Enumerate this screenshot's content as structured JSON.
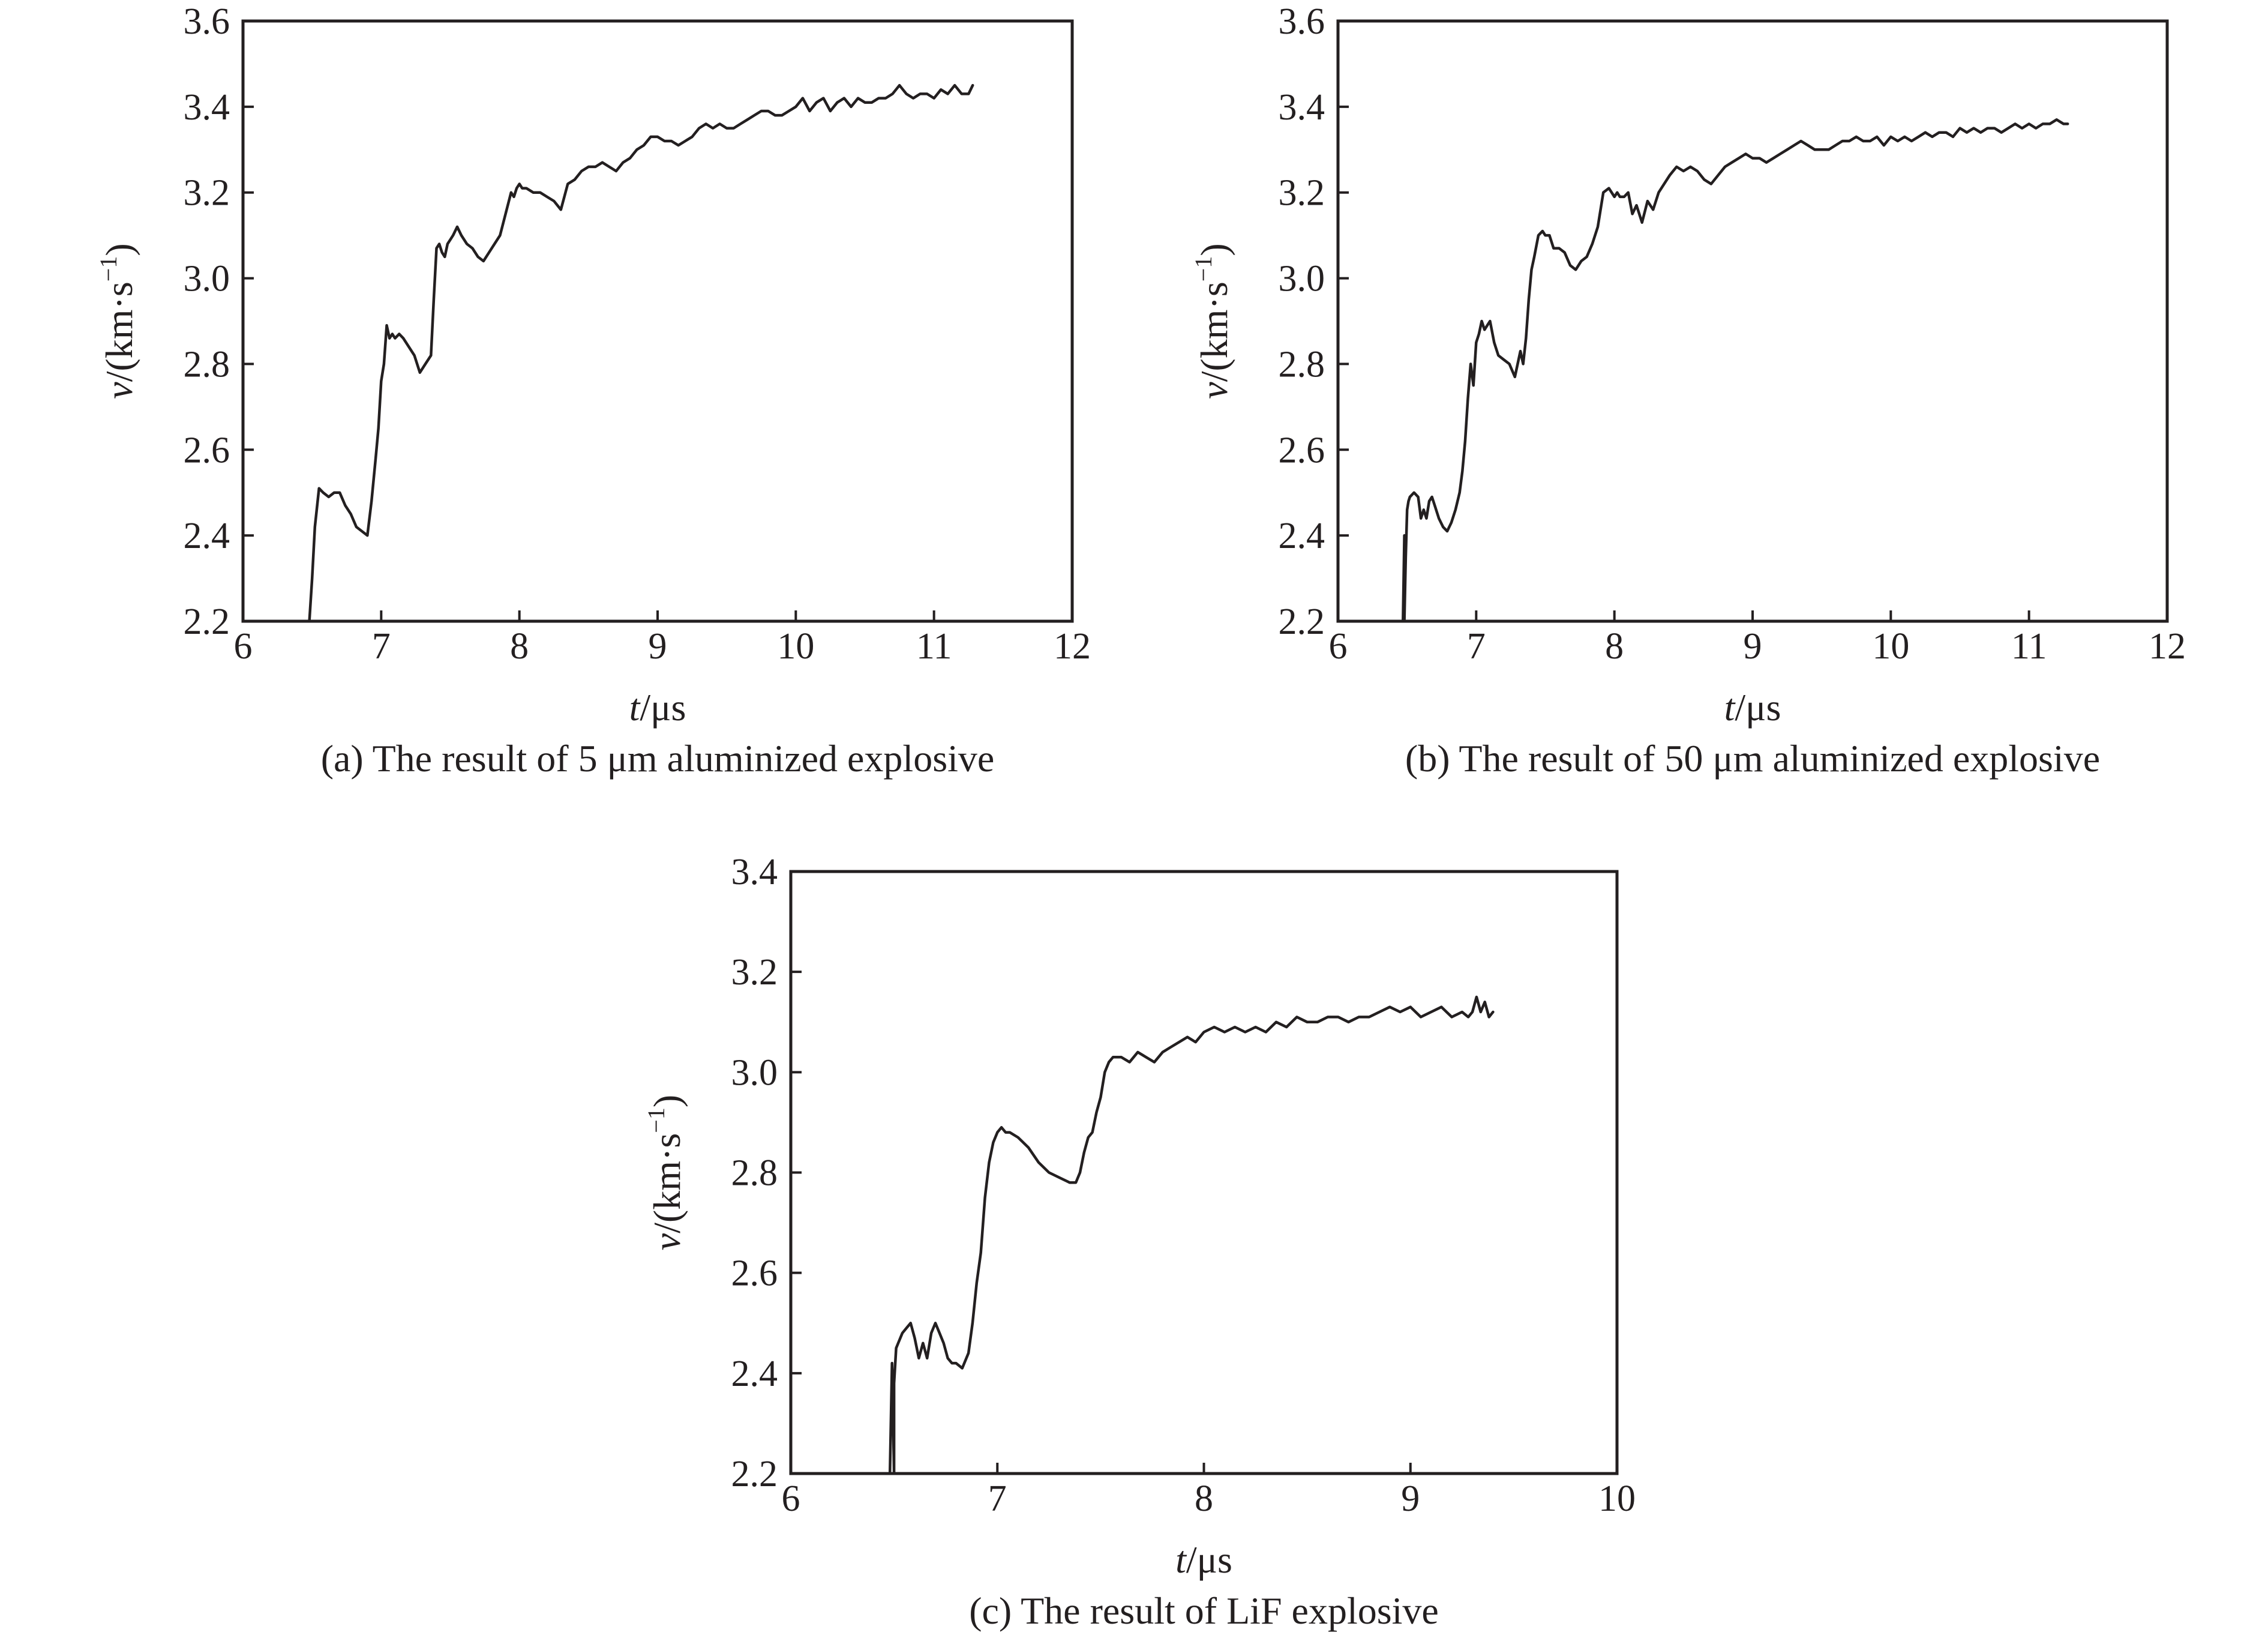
{
  "chart_data": [
    {
      "id": "a",
      "type": "line",
      "caption": "(a) The result of 5 μm aluminized explosive",
      "xlabel_var": "t",
      "xlabel_unit": "/μs",
      "ylabel_var": "v",
      "ylabel_unit": "/(km·s",
      "ylabel_exp": "−1",
      "ylabel_close": ")",
      "xlim": [
        6,
        12
      ],
      "ylim": [
        2.2,
        3.6
      ],
      "xticks": [
        6,
        7,
        8,
        9,
        10,
        11,
        12
      ],
      "yticks": [
        2.2,
        2.4,
        2.6,
        2.8,
        3.0,
        3.2,
        3.4,
        3.6
      ],
      "grid": false,
      "series": [
        {
          "color": "#231f20",
          "x": [
            6.48,
            6.5,
            6.52,
            6.55,
            6.58,
            6.62,
            6.66,
            6.7,
            6.74,
            6.78,
            6.82,
            6.86,
            6.9,
            6.93,
            6.96,
            6.98,
            7.0,
            7.02,
            7.04,
            7.06,
            7.08,
            7.1,
            7.13,
            7.16,
            7.2,
            7.24,
            7.28,
            7.32,
            7.36,
            7.38,
            7.4,
            7.42,
            7.44,
            7.46,
            7.48,
            7.5,
            7.52,
            7.55,
            7.58,
            7.62,
            7.66,
            7.7,
            7.74,
            7.78,
            7.82,
            7.86,
            7.9,
            7.94,
            7.96,
            7.98,
            8.0,
            8.02,
            8.05,
            8.1,
            8.15,
            8.2,
            8.25,
            8.3,
            8.35,
            8.4,
            8.45,
            8.5,
            8.55,
            8.6,
            8.65,
            8.7,
            8.75,
            8.8,
            8.85,
            8.9,
            8.95,
            9.0,
            9.05,
            9.1,
            9.15,
            9.2,
            9.25,
            9.3,
            9.35,
            9.4,
            9.45,
            9.5,
            9.55,
            9.6,
            9.65,
            9.7,
            9.75,
            9.8,
            9.85,
            9.9,
            9.95,
            10.0,
            10.05,
            10.1,
            10.15,
            10.2,
            10.25,
            10.3,
            10.35,
            10.4,
            10.45,
            10.5,
            10.55,
            10.6,
            10.65,
            10.7,
            10.75,
            10.8,
            10.85,
            10.9,
            10.95,
            11.0,
            11.05,
            11.1,
            11.15,
            11.2,
            11.25,
            11.28
          ],
          "y": [
            2.2,
            2.3,
            2.42,
            2.51,
            2.5,
            2.49,
            2.5,
            2.5,
            2.47,
            2.45,
            2.42,
            2.41,
            2.4,
            2.48,
            2.58,
            2.65,
            2.76,
            2.8,
            2.89,
            2.86,
            2.87,
            2.86,
            2.87,
            2.86,
            2.84,
            2.82,
            2.78,
            2.8,
            2.82,
            2.95,
            3.07,
            3.08,
            3.06,
            3.05,
            3.08,
            3.09,
            3.1,
            3.12,
            3.1,
            3.08,
            3.07,
            3.05,
            3.04,
            3.06,
            3.08,
            3.1,
            3.15,
            3.2,
            3.19,
            3.21,
            3.22,
            3.21,
            3.21,
            3.2,
            3.2,
            3.19,
            3.18,
            3.16,
            3.22,
            3.23,
            3.25,
            3.26,
            3.26,
            3.27,
            3.26,
            3.25,
            3.27,
            3.28,
            3.3,
            3.31,
            3.33,
            3.33,
            3.32,
            3.32,
            3.31,
            3.32,
            3.33,
            3.35,
            3.36,
            3.35,
            3.36,
            3.35,
            3.35,
            3.36,
            3.37,
            3.38,
            3.39,
            3.39,
            3.38,
            3.38,
            3.39,
            3.4,
            3.42,
            3.39,
            3.41,
            3.42,
            3.39,
            3.41,
            3.42,
            3.4,
            3.42,
            3.41,
            3.41,
            3.42,
            3.42,
            3.43,
            3.45,
            3.43,
            3.42,
            3.43,
            3.43,
            3.42,
            3.44,
            3.43,
            3.45,
            3.43,
            3.43,
            3.45
          ]
        }
      ]
    },
    {
      "id": "b",
      "type": "line",
      "caption": "(b) The result of 50 μm aluminized explosive",
      "xlabel_var": "t",
      "xlabel_unit": "/μs",
      "ylabel_var": "v",
      "ylabel_unit": "/(km·s",
      "ylabel_exp": "−1",
      "ylabel_close": ")",
      "xlim": [
        6,
        12
      ],
      "ylim": [
        2.2,
        3.6
      ],
      "xticks": [
        6,
        7,
        8,
        9,
        10,
        11,
        12
      ],
      "yticks": [
        2.2,
        2.4,
        2.6,
        2.8,
        3.0,
        3.2,
        3.4,
        3.6
      ],
      "grid": false,
      "series": [
        {
          "color": "#231f20",
          "x": [
            6.47,
            6.48,
            6.48,
            6.49,
            6.5,
            6.51,
            6.52,
            6.55,
            6.58,
            6.6,
            6.62,
            6.64,
            6.66,
            6.68,
            6.7,
            6.73,
            6.76,
            6.79,
            6.82,
            6.85,
            6.88,
            6.9,
            6.92,
            6.94,
            6.96,
            6.98,
            7.0,
            7.02,
            7.04,
            7.06,
            7.08,
            7.1,
            7.13,
            7.16,
            7.2,
            7.24,
            7.28,
            7.32,
            7.34,
            7.36,
            7.38,
            7.4,
            7.42,
            7.45,
            7.48,
            7.5,
            7.53,
            7.56,
            7.6,
            7.64,
            7.68,
            7.72,
            7.76,
            7.8,
            7.84,
            7.88,
            7.92,
            7.96,
            8.0,
            8.02,
            8.04,
            8.07,
            8.1,
            8.13,
            8.16,
            8.2,
            8.24,
            8.28,
            8.32,
            8.36,
            8.4,
            8.45,
            8.5,
            8.55,
            8.6,
            8.65,
            8.7,
            8.75,
            8.8,
            8.85,
            8.9,
            8.95,
            9.0,
            9.05,
            9.1,
            9.15,
            9.2,
            9.25,
            9.3,
            9.35,
            9.4,
            9.45,
            9.5,
            9.55,
            9.6,
            9.65,
            9.7,
            9.75,
            9.8,
            9.85,
            9.9,
            9.95,
            10.0,
            10.05,
            10.1,
            10.15,
            10.2,
            10.25,
            10.3,
            10.35,
            10.4,
            10.45,
            10.5,
            10.55,
            10.6,
            10.65,
            10.7,
            10.75,
            10.8,
            10.85,
            10.9,
            10.95,
            11.0,
            11.05,
            11.1,
            11.15,
            11.2,
            11.25,
            11.28
          ],
          "y": [
            2.2,
            2.4,
            2.2,
            2.35,
            2.46,
            2.48,
            2.49,
            2.5,
            2.49,
            2.44,
            2.46,
            2.44,
            2.48,
            2.49,
            2.47,
            2.44,
            2.42,
            2.41,
            2.43,
            2.46,
            2.5,
            2.55,
            2.62,
            2.72,
            2.8,
            2.75,
            2.85,
            2.87,
            2.9,
            2.88,
            2.89,
            2.9,
            2.85,
            2.82,
            2.81,
            2.8,
            2.77,
            2.83,
            2.8,
            2.86,
            2.95,
            3.02,
            3.05,
            3.1,
            3.11,
            3.1,
            3.1,
            3.07,
            3.07,
            3.06,
            3.03,
            3.02,
            3.04,
            3.05,
            3.08,
            3.12,
            3.2,
            3.21,
            3.19,
            3.2,
            3.19,
            3.19,
            3.2,
            3.15,
            3.17,
            3.13,
            3.18,
            3.16,
            3.2,
            3.22,
            3.24,
            3.26,
            3.25,
            3.26,
            3.25,
            3.23,
            3.22,
            3.24,
            3.26,
            3.27,
            3.28,
            3.29,
            3.28,
            3.28,
            3.27,
            3.28,
            3.29,
            3.3,
            3.31,
            3.32,
            3.31,
            3.3,
            3.3,
            3.3,
            3.31,
            3.32,
            3.32,
            3.33,
            3.32,
            3.32,
            3.33,
            3.31,
            3.33,
            3.32,
            3.33,
            3.32,
            3.33,
            3.34,
            3.33,
            3.34,
            3.34,
            3.33,
            3.35,
            3.34,
            3.35,
            3.34,
            3.35,
            3.35,
            3.34,
            3.35,
            3.36,
            3.35,
            3.36,
            3.35,
            3.36,
            3.36,
            3.37,
            3.36,
            3.36
          ]
        }
      ]
    },
    {
      "id": "c",
      "type": "line",
      "caption": "(c) The result of LiF explosive",
      "xlabel_var": "t",
      "xlabel_unit": "/μs",
      "ylabel_var": "v",
      "ylabel_unit": "/(km·s",
      "ylabel_exp": "−1",
      "ylabel_close": ")",
      "xlim": [
        6,
        10
      ],
      "ylim": [
        2.2,
        3.4
      ],
      "xticks": [
        6,
        7,
        8,
        9,
        10
      ],
      "yticks": [
        2.2,
        2.4,
        2.6,
        2.8,
        3.0,
        3.2,
        3.4
      ],
      "grid": false,
      "series": [
        {
          "color": "#231f20",
          "x": [
            6.48,
            6.49,
            6.5,
            6.5,
            6.51,
            6.52,
            6.54,
            6.56,
            6.58,
            6.6,
            6.62,
            6.64,
            6.66,
            6.68,
            6.7,
            6.72,
            6.74,
            6.76,
            6.78,
            6.8,
            6.83,
            6.86,
            6.88,
            6.9,
            6.92,
            6.94,
            6.96,
            6.98,
            7.0,
            7.02,
            7.04,
            7.06,
            7.1,
            7.15,
            7.2,
            7.25,
            7.3,
            7.35,
            7.38,
            7.4,
            7.42,
            7.44,
            7.46,
            7.48,
            7.5,
            7.52,
            7.54,
            7.56,
            7.6,
            7.64,
            7.68,
            7.72,
            7.76,
            7.8,
            7.84,
            7.88,
            7.92,
            7.96,
            8.0,
            8.05,
            8.1,
            8.15,
            8.2,
            8.25,
            8.3,
            8.35,
            8.4,
            8.45,
            8.5,
            8.55,
            8.6,
            8.65,
            8.7,
            8.75,
            8.8,
            8.85,
            8.9,
            8.95,
            9.0,
            9.05,
            9.1,
            9.15,
            9.2,
            9.25,
            9.28,
            9.3,
            9.32,
            9.34,
            9.36,
            9.38,
            9.4
          ],
          "y": [
            2.2,
            2.42,
            2.2,
            2.38,
            2.45,
            2.46,
            2.48,
            2.49,
            2.5,
            2.47,
            2.43,
            2.46,
            2.43,
            2.48,
            2.5,
            2.48,
            2.46,
            2.43,
            2.42,
            2.42,
            2.41,
            2.44,
            2.5,
            2.58,
            2.64,
            2.75,
            2.82,
            2.86,
            2.88,
            2.89,
            2.88,
            2.88,
            2.87,
            2.85,
            2.82,
            2.8,
            2.79,
            2.78,
            2.78,
            2.8,
            2.84,
            2.87,
            2.88,
            2.92,
            2.95,
            3.0,
            3.02,
            3.03,
            3.03,
            3.02,
            3.04,
            3.03,
            3.02,
            3.04,
            3.05,
            3.06,
            3.07,
            3.06,
            3.08,
            3.09,
            3.08,
            3.09,
            3.08,
            3.09,
            3.08,
            3.1,
            3.09,
            3.11,
            3.1,
            3.1,
            3.11,
            3.11,
            3.1,
            3.11,
            3.11,
            3.12,
            3.13,
            3.12,
            3.13,
            3.11,
            3.12,
            3.13,
            3.11,
            3.12,
            3.11,
            3.12,
            3.15,
            3.12,
            3.14,
            3.11,
            3.12
          ]
        }
      ]
    }
  ]
}
